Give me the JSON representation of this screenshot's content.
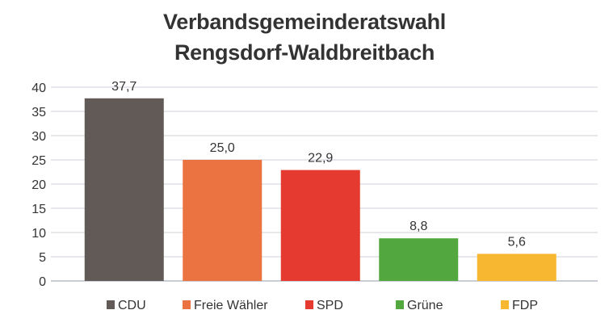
{
  "chart_data": {
    "type": "bar",
    "title_lines": [
      "Verbandsgemeinderatswahl",
      "Rengsdorf-Waldbreitbach"
    ],
    "categories": [
      "CDU",
      "Freie Wähler",
      "SPD",
      "Grüne",
      "FDP"
    ],
    "values": [
      37.7,
      25.0,
      22.9,
      8.8,
      5.6
    ],
    "value_labels": [
      "37,7",
      "25,0",
      "22,9",
      "8,8",
      "5,6"
    ],
    "colors": [
      "#615a57",
      "#ea7341",
      "#e43a2f",
      "#52a83e",
      "#f7b731"
    ],
    "ylim": [
      0,
      40
    ],
    "yticks": [
      0,
      5,
      10,
      15,
      20,
      25,
      30,
      35,
      40
    ],
    "grid": true,
    "legend": "bottom",
    "xlabel": "",
    "ylabel": ""
  }
}
